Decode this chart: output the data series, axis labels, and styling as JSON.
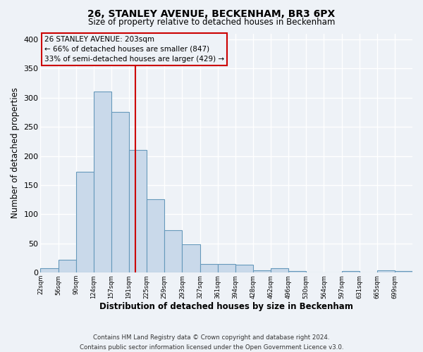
{
  "title": "26, STANLEY AVENUE, BECKENHAM, BR3 6PX",
  "subtitle": "Size of property relative to detached houses in Beckenham",
  "xlabel": "Distribution of detached houses by size in Beckenham",
  "ylabel": "Number of detached properties",
  "bin_labels": [
    "22sqm",
    "56sqm",
    "90sqm",
    "124sqm",
    "157sqm",
    "191sqm",
    "225sqm",
    "259sqm",
    "293sqm",
    "327sqm",
    "361sqm",
    "394sqm",
    "428sqm",
    "462sqm",
    "496sqm",
    "530sqm",
    "564sqm",
    "597sqm",
    "631sqm",
    "665sqm",
    "699sqm"
  ],
  "bar_values": [
    7,
    22,
    173,
    310,
    275,
    210,
    126,
    73,
    49,
    15,
    15,
    14,
    4,
    8,
    3,
    0,
    0,
    3,
    0,
    4,
    3
  ],
  "bar_color": "#c9d9ea",
  "bar_edge_color": "#6699bb",
  "ylim": [
    0,
    410
  ],
  "yticks": [
    0,
    50,
    100,
    150,
    200,
    250,
    300,
    350,
    400
  ],
  "vline_color": "#cc0000",
  "annotation_title": "26 STANLEY AVENUE: 203sqm",
  "annotation_line1": "← 66% of detached houses are smaller (847)",
  "annotation_line2": "33% of semi-detached houses are larger (429) →",
  "annotation_box_color": "#cc0000",
  "footnote1": "Contains HM Land Registry data © Crown copyright and database right 2024.",
  "footnote2": "Contains public sector information licensed under the Open Government Licence v3.0.",
  "bg_color": "#eef2f7",
  "grid_color": "#ffffff",
  "bin_starts": [
    22,
    56,
    90,
    124,
    157,
    191,
    225,
    259,
    293,
    327,
    361,
    394,
    428,
    462,
    496,
    530,
    564,
    597,
    631,
    665,
    699
  ],
  "property_sqm": 203
}
